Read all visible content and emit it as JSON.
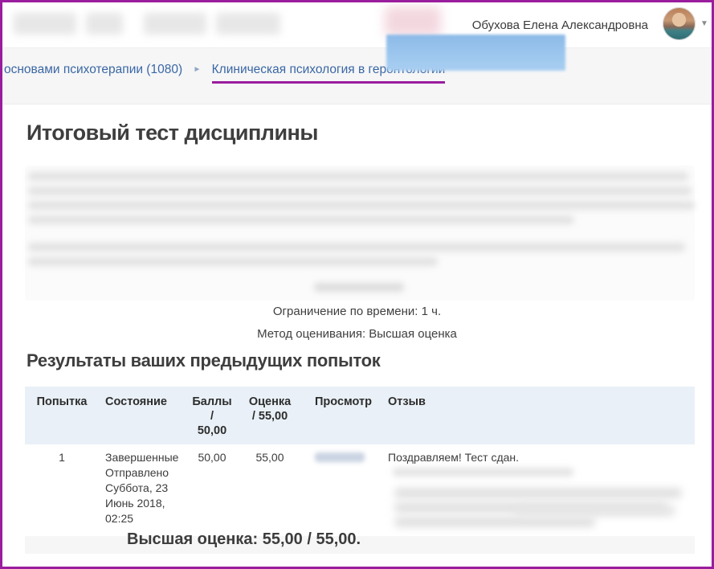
{
  "header": {
    "user_name": "Обухова Елена Александровна",
    "caret_icon": "▼"
  },
  "breadcrumb": {
    "separator": "►",
    "items": [
      {
        "label": "основами психотерапии (1080)",
        "active": false
      },
      {
        "label": "Клиническая психология в геронтологии",
        "active": true
      }
    ]
  },
  "main": {
    "title": "Итоговый тест дисциплины",
    "time_limit": "Ограничение по времени: 1 ч.",
    "grading_method": "Метод оценивания: Высшая оценка",
    "results_heading": "Результаты ваших предыдущих попыток",
    "final_grade": "Высшая оценка: 55,00 / 55,00."
  },
  "attempts_table": {
    "columns": {
      "attempt": "Попытка",
      "state": "Состояние",
      "marks_line1": "Баллы",
      "marks_line2": "/",
      "marks_line3": "50,00",
      "grade_line1": "Оценка",
      "grade_line2": "/ 55,00",
      "review": "Просмотр",
      "feedback": "Отзыв"
    },
    "rows": [
      {
        "attempt": "1",
        "state_line1": "Завершенные",
        "state_line2": "Отправлено",
        "state_line3": "Суббота, 23",
        "state_line4": "Июнь 2018,",
        "state_line5": "02:25",
        "marks": "50,00",
        "grade": "55,00",
        "feedback": "Поздравляем! Тест сдан."
      }
    ]
  },
  "colors": {
    "accent_border": "#9a1d9e",
    "link_blue": "#3a67a3",
    "table_header_bg": "#e9f0f7",
    "breadcrumb_underline": "#9a1d9e"
  }
}
